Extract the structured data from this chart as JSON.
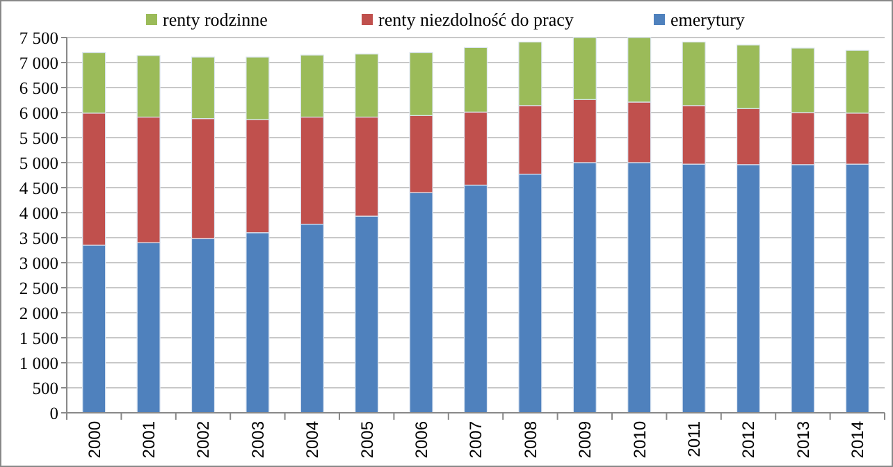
{
  "chart_data": {
    "type": "bar",
    "stacked": true,
    "categories": [
      "2000",
      "2001",
      "2002",
      "2003",
      "2004",
      "2005",
      "2006",
      "2007",
      "2008",
      "2009",
      "2010",
      "2011",
      "2012",
      "2013",
      "2014"
    ],
    "series": [
      {
        "name": "emerytury",
        "color": "#4f81bd",
        "values": [
          3350,
          3400,
          3480,
          3600,
          3770,
          3930,
          4400,
          4550,
          4770,
          5000,
          5000,
          4970,
          4960,
          4960,
          4970
        ]
      },
      {
        "name": "renty niezdolność do pracy",
        "color": "#c0504d",
        "values": [
          2640,
          2510,
          2400,
          2260,
          2140,
          1980,
          1540,
          1460,
          1370,
          1260,
          1210,
          1170,
          1120,
          1040,
          1020
        ]
      },
      {
        "name": "renty rodzinne",
        "color": "#9bbb59",
        "values": [
          1210,
          1230,
          1230,
          1250,
          1240,
          1260,
          1260,
          1290,
          1270,
          1240,
          1290,
          1270,
          1270,
          1290,
          1255
        ]
      }
    ],
    "ylim": [
      0,
      7500
    ],
    "yticks": [
      0,
      500,
      {
        "value": 1000,
        "label": "1 000"
      },
      {
        "value": 1500,
        "label": "1 500"
      },
      {
        "value": 2000,
        "label": "2 000"
      },
      {
        "value": 2500,
        "label": "2 500"
      },
      {
        "value": 3000,
        "label": "3 000"
      },
      {
        "value": 3500,
        "label": "3 500"
      },
      {
        "value": 4000,
        "label": "4 000"
      },
      {
        "value": 4500,
        "label": "4 500"
      },
      {
        "value": 5000,
        "label": "5 000"
      },
      {
        "value": 5500,
        "label": "5 500"
      },
      {
        "value": 6000,
        "label": "6 000"
      },
      {
        "value": 6500,
        "label": "6 500"
      },
      {
        "value": 7000,
        "label": "7 000"
      },
      {
        "value": 7500,
        "label": "7 500"
      }
    ],
    "grid": "y",
    "legend": "top"
  }
}
